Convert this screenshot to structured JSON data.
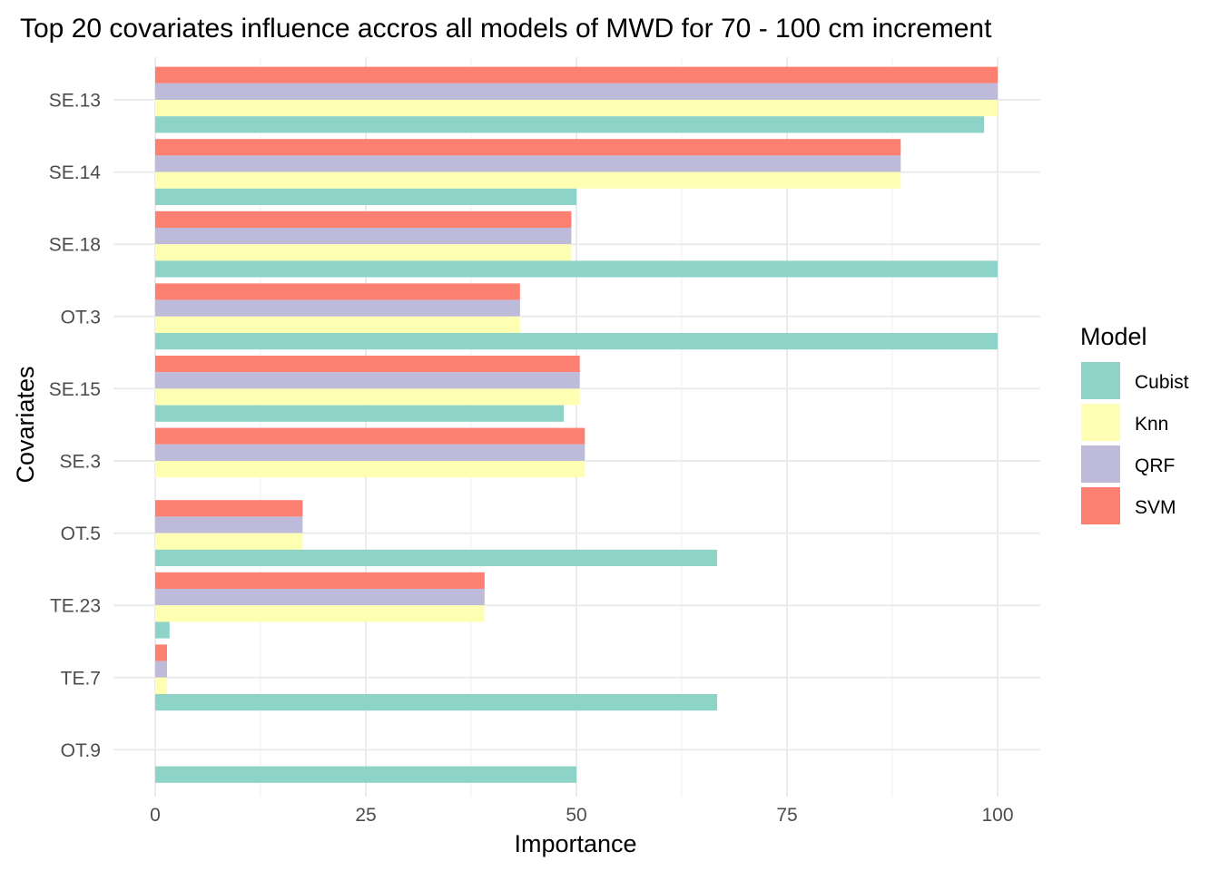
{
  "chart_data": {
    "type": "bar",
    "orientation": "horizontal",
    "title": "Top 20 covariates influence accros all models of MWD for 70 - 100 cm increment",
    "xlabel": "Importance",
    "ylabel": "Covariates",
    "xlim": [
      0,
      100
    ],
    "x_ticks": [
      "0",
      "25",
      "50",
      "75",
      "100"
    ],
    "grid": true,
    "legend": {
      "title": "Model",
      "position": "right"
    },
    "categories": [
      "SE.13",
      "SE.14",
      "SE.18",
      "OT.3",
      "SE.15",
      "SE.3",
      "OT.5",
      "TE.23",
      "TE.7",
      "OT.9"
    ],
    "series": [
      {
        "name": "Cubist",
        "color": "#8DD3C7",
        "values": [
          98.4,
          50,
          100,
          100,
          48.5,
          null,
          66.7,
          1.7,
          66.7,
          50
        ]
      },
      {
        "name": "Knn",
        "color": "#FFFFB3",
        "values": [
          100,
          88.5,
          49.4,
          43.3,
          50.4,
          51.0,
          17.5,
          39.1,
          1.4,
          null
        ]
      },
      {
        "name": "QRF",
        "color": "#BEBADA",
        "values": [
          100,
          88.5,
          49.4,
          43.3,
          50.4,
          51.0,
          17.5,
          39.1,
          1.4,
          null
        ]
      },
      {
        "name": "SVM",
        "color": "#FB8072",
        "values": [
          100,
          88.5,
          49.4,
          43.3,
          50.4,
          51.0,
          17.5,
          39.1,
          1.4,
          null
        ]
      }
    ]
  }
}
